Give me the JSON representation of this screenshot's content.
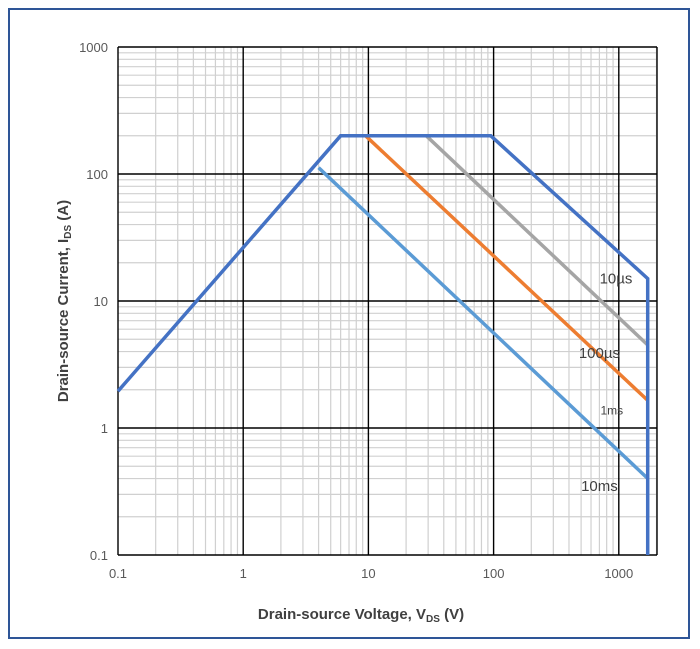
{
  "chart_data": {
    "type": "line",
    "title": "",
    "xlabel": {
      "main": "Drain-source Voltage, V",
      "sub": "DS",
      "unit": " (V)"
    },
    "ylabel": {
      "main": "Drain-source Current, I",
      "sub": "DS",
      "unit": " (A)"
    },
    "x_scale": "log",
    "y_scale": "log",
    "xlim": [
      0.1,
      2000
    ],
    "ylim": [
      0.1,
      1000
    ],
    "x_ticks": [
      {
        "value": 0.1,
        "label": "0.1"
      },
      {
        "value": 1,
        "label": "1"
      },
      {
        "value": 10,
        "label": "10"
      },
      {
        "value": 100,
        "label": "100"
      },
      {
        "value": 1000,
        "label": "1000"
      }
    ],
    "y_ticks": [
      {
        "value": 0.1,
        "label": "0.1"
      },
      {
        "value": 1,
        "label": "1"
      },
      {
        "value": 10,
        "label": "10"
      },
      {
        "value": 100,
        "label": "100"
      },
      {
        "value": 1000,
        "label": "1000"
      }
    ],
    "grid": true,
    "series": [
      {
        "name": "10µs",
        "color": "#4472c4",
        "points": [
          [
            0.1,
            1.95
          ],
          [
            6,
            200
          ],
          [
            95,
            200
          ],
          [
            1700,
            15
          ],
          [
            1700,
            0.1
          ]
        ]
      },
      {
        "name": "100µs",
        "color": "#a5a5a5",
        "points": [
          [
            29,
            200
          ],
          [
            1700,
            4.5
          ]
        ]
      },
      {
        "name": "1ms",
        "color": "#ed7d31",
        "points": [
          [
            9.5,
            200
          ],
          [
            1700,
            1.65
          ]
        ]
      },
      {
        "name": "10ms",
        "color": "#5b9bd5",
        "points": [
          [
            4,
            112
          ],
          [
            1700,
            0.4
          ]
        ]
      }
    ],
    "annotations": [
      {
        "text": "10µs",
        "x": 950,
        "y": 15
      },
      {
        "text": "100µs",
        "x": 700,
        "y": 3.9
      },
      {
        "text": "1ms",
        "x": 880,
        "y": 1.4
      },
      {
        "text": "10ms",
        "x": 700,
        "y": 0.35
      }
    ]
  }
}
